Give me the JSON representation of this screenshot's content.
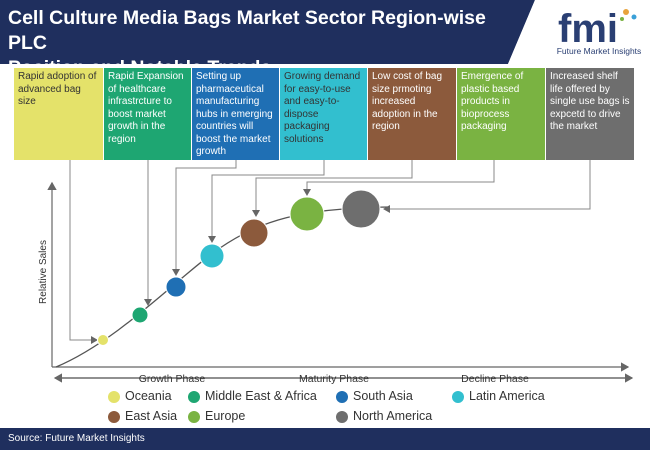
{
  "header": {
    "title_line1": "Cell Culture Media Bags Market Sector Region-wise PLC",
    "title_line2": "Position and Notable Trends",
    "logo_letters": "fmi",
    "logo_text": "Future Market Insights"
  },
  "trends": [
    {
      "text": "Rapid adoption of advanced bag size",
      "color": "#e4e26a",
      "text_color": "#333333"
    },
    {
      "text": "Rapid Expansion of healthcare infrastrcture to boost market growth in the region",
      "color": "#1ea672",
      "text_color": "#ffffff"
    },
    {
      "text": "Setting up pharmaceutical manufacturing hubs in emerging countries will boost the market growth",
      "color": "#1f6fb4",
      "text_color": "#ffffff"
    },
    {
      "text": "Growing demand for easy-to-use and easy-to-dispose packaging solutions",
      "color": "#32bfcf",
      "text_color": "#333333"
    },
    {
      "text": "Low cost of bag size prmoting increased adoption in the region",
      "color": "#8c5a3c",
      "text_color": "#ffffff"
    },
    {
      "text": "Emergence of plastic based products in bioprocess packaging",
      "color": "#7ab342",
      "text_color": "#ffffff"
    },
    {
      "text": "Increased shelf life offered by single use bags is expcetd to drive the market",
      "color": "#6e6e6e",
      "text_color": "#ffffff"
    }
  ],
  "chart_data": {
    "type": "scatter",
    "ylabel": "Relative Sales",
    "phases": [
      "Growth Phase",
      "Maturity Phase",
      "Decline Phase"
    ],
    "series": [
      {
        "name": "Oceania",
        "color": "#e4e26a",
        "size": 1
      },
      {
        "name": "Middle East & Africa",
        "color": "#1ea672",
        "size": 2
      },
      {
        "name": "South Asia",
        "color": "#1f6fb4",
        "size": 3
      },
      {
        "name": "Latin America",
        "color": "#32bfcf",
        "size": 4
      },
      {
        "name": "East Asia",
        "color": "#8c5a3c",
        "size": 5
      },
      {
        "name": "Europe",
        "color": "#7ab342",
        "size": 6
      },
      {
        "name": "North America",
        "color": "#6e6e6e",
        "size": 7
      }
    ]
  },
  "legend": [
    {
      "label": "Oceania",
      "color": "#e4e26a"
    },
    {
      "label": "Middle East & Africa",
      "color": "#1ea672"
    },
    {
      "label": "South Asia",
      "color": "#1f6fb4"
    },
    {
      "label": "Latin America",
      "color": "#32bfcf"
    },
    {
      "label": "East Asia",
      "color": "#8c5a3c"
    },
    {
      "label": "Europe",
      "color": "#7ab342"
    },
    {
      "label": "North America",
      "color": "#6e6e6e"
    }
  ],
  "source": "Source: Future Market Insights"
}
